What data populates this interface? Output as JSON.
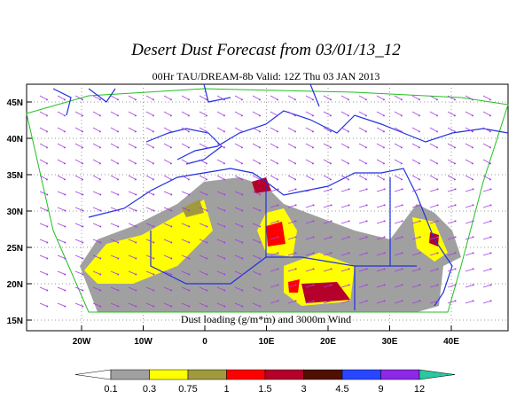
{
  "header": {
    "title": "Desert Dust Forecast from 03/01/13_12",
    "subtitle": "00Hr TAU/DREAM-8b Valid: 12Z Thu 03 JAN 2013"
  },
  "map": {
    "lat_labels": [
      "45N",
      "40N",
      "35N",
      "30N",
      "25N",
      "20N",
      "15N"
    ],
    "lon_labels": [
      "20W",
      "10W",
      "0",
      "10E",
      "20E",
      "30E",
      "40E"
    ],
    "caption": "Dust loading (g/m*m) and 3000m Wind"
  },
  "colorbar": {
    "labels": [
      "0.1",
      "0.3",
      "0.75",
      "1",
      "1.5",
      "3",
      "4.5",
      "9",
      "12"
    ],
    "colors": [
      "#ffffff",
      "#a0a0a0",
      "#ffff00",
      "#a09a3c",
      "#ff0000",
      "#b4002a",
      "#501000",
      "#2846ff",
      "#8c28e6",
      "#28c8a0"
    ]
  }
}
